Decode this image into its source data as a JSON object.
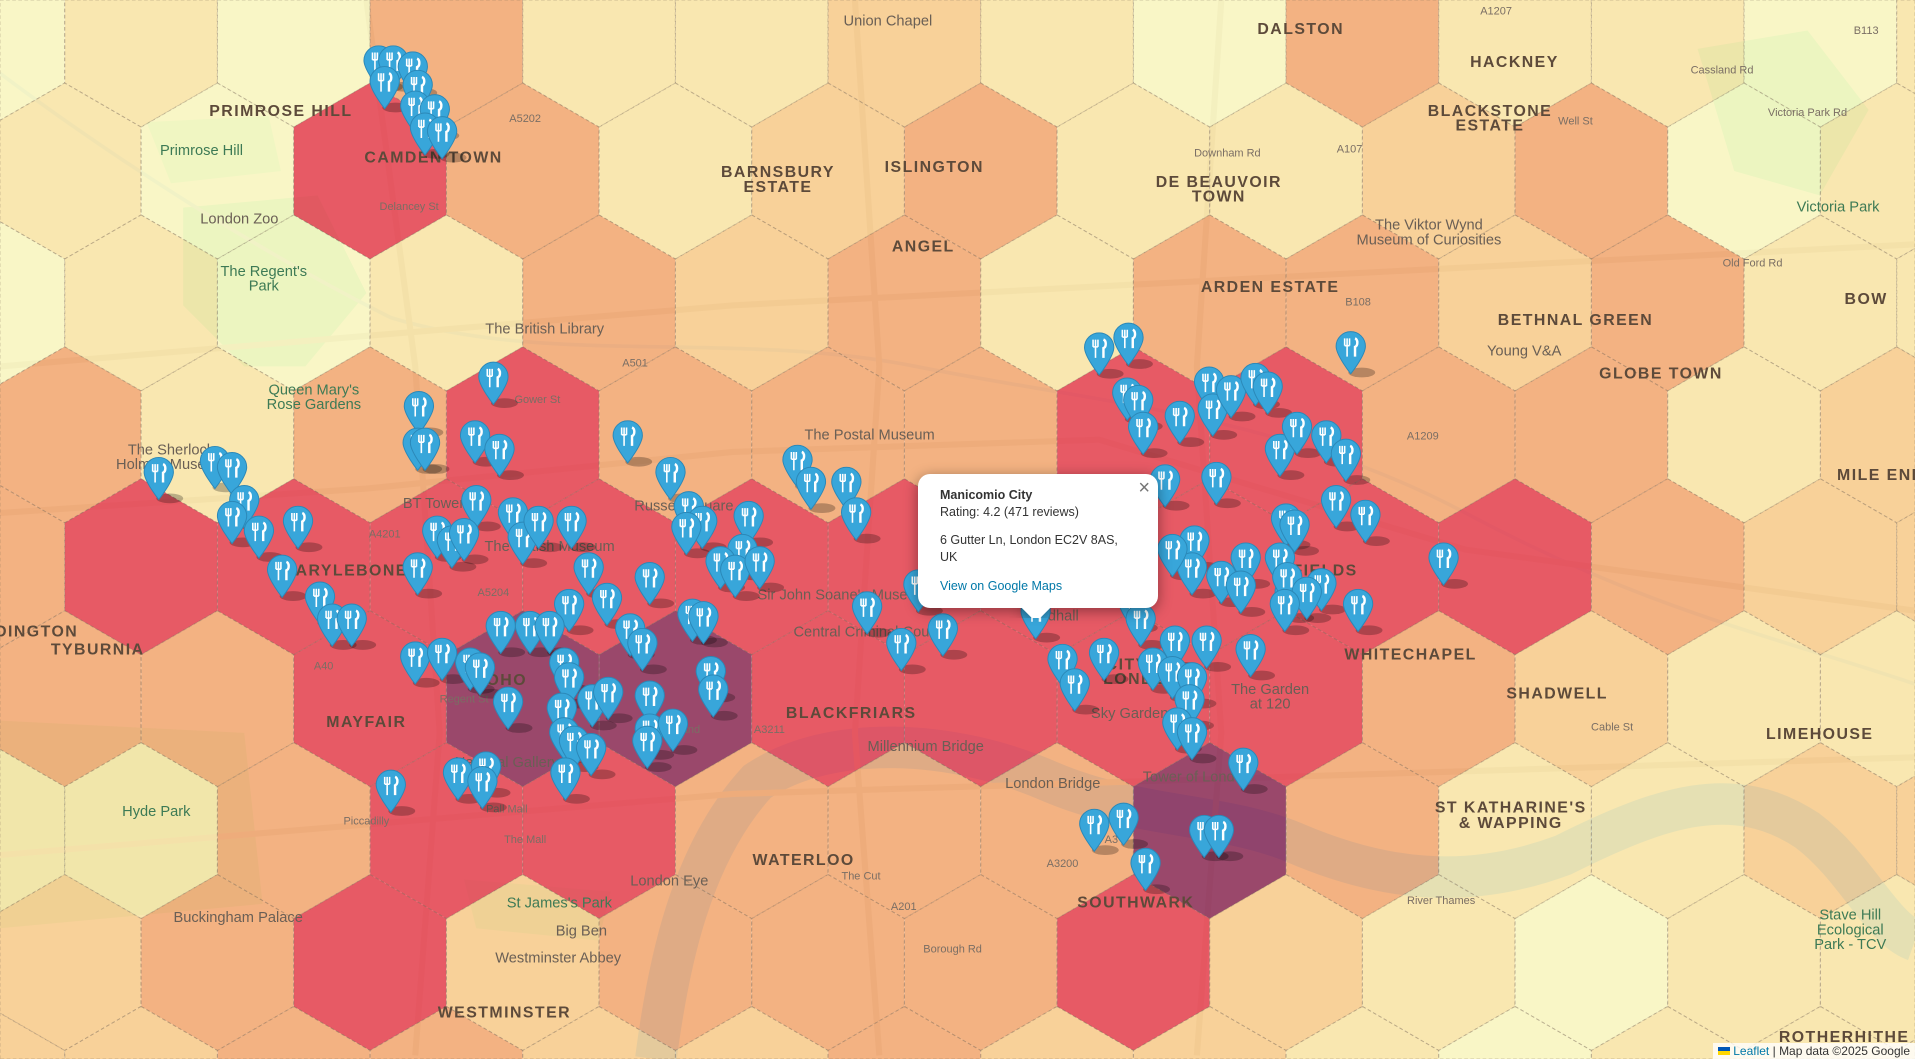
{
  "map": {
    "hex_colors": [
      "#fbf8b8",
      "#fbe39a",
      "#f9c57a",
      "#f39a5a",
      "#e5404e",
      "#8b2a55"
    ],
    "hex_levels": [
      [
        0,
        1,
        0,
        3,
        1,
        1,
        2,
        1,
        0,
        3,
        1,
        1,
        0,
        1
      ],
      [
        0,
        1,
        0,
        4,
        3,
        1,
        2,
        3,
        1,
        1,
        2,
        3,
        0,
        1,
        1
      ],
      [
        0,
        1,
        0,
        1,
        3,
        2,
        3,
        1,
        3,
        3,
        2,
        3,
        1,
        1
      ],
      [
        3,
        3,
        1,
        3,
        4,
        3,
        3,
        3,
        4,
        4,
        3,
        3,
        1,
        2,
        2
      ],
      [
        3,
        4,
        4,
        4,
        4,
        4,
        4,
        4,
        4,
        4,
        4,
        3,
        2,
        2
      ],
      [
        3,
        3,
        3,
        4,
        5,
        5,
        4,
        4,
        4,
        4,
        3,
        2,
        1,
        1,
        1
      ],
      [
        1,
        1,
        3,
        4,
        4,
        3,
        3,
        3,
        5,
        3,
        1,
        1,
        2,
        2
      ],
      [
        2,
        2,
        3,
        4,
        2,
        3,
        3,
        3,
        4,
        2,
        1,
        0,
        1,
        1,
        1
      ],
      [
        2,
        2,
        3,
        3,
        2,
        2,
        3,
        2,
        2,
        1,
        0,
        1,
        1,
        1
      ]
    ],
    "marker_color": "#38a6da",
    "marker_icon": "restaurant-fork-knife-icon",
    "labels": [
      {
        "text": "DALSTON",
        "kind": "area"
      },
      {
        "text": "HACKNEY",
        "kind": "area"
      },
      {
        "text": "CAMDEN TOWN",
        "kind": "area"
      },
      {
        "text": "ISLINGTON",
        "kind": "area"
      },
      {
        "text": "ANGEL",
        "kind": "area"
      },
      {
        "text": "BARNSBURY",
        "kind": "area"
      },
      {
        "text": "ESTATE",
        "kind": "area"
      },
      {
        "text": "ARDEN ESTATE",
        "kind": "area"
      },
      {
        "text": "BETHNAL GREEN",
        "kind": "area"
      },
      {
        "text": "GLOBE TOWN",
        "kind": "area"
      },
      {
        "text": "BOW",
        "kind": "area"
      },
      {
        "text": "MARYLEBONE",
        "kind": "area"
      },
      {
        "text": "TYBURNIA",
        "kind": "area"
      },
      {
        "text": "MAYFAIR",
        "kind": "area"
      },
      {
        "text": "SOHO",
        "kind": "area"
      },
      {
        "text": "BLACKFRIARS",
        "kind": "area"
      },
      {
        "text": "CITY OF",
        "kind": "area"
      },
      {
        "text": "LONDON",
        "kind": "area"
      },
      {
        "text": "WHITECHAPEL",
        "kind": "area"
      },
      {
        "text": "SHADWELL",
        "kind": "area"
      },
      {
        "text": "LIMEHOUSE",
        "kind": "area"
      },
      {
        "text": "WATERLOO",
        "kind": "area"
      },
      {
        "text": "ST KATHARINE'S",
        "kind": "area"
      },
      {
        "text": "& WAPPING",
        "kind": "area"
      },
      {
        "text": "WESTMINSTER",
        "kind": "area"
      },
      {
        "text": "ROTHERHITHE",
        "kind": "area"
      },
      {
        "text": "SOUTHWARK",
        "kind": "area"
      },
      {
        "text": "MILE END",
        "kind": "area"
      },
      {
        "text": "DINGTON",
        "kind": "area"
      },
      {
        "text": "BLACKSTONE",
        "kind": "area"
      },
      {
        "text": "ESTATE",
        "kind": "area"
      },
      {
        "text": "DE BEAUVOIR",
        "kind": "area"
      },
      {
        "text": "TOWN",
        "kind": "area"
      },
      {
        "text": "FIELDS",
        "kind": "area"
      },
      {
        "text": "PRIMROSE HILL",
        "kind": "area"
      },
      {
        "text": "Union Chapel",
        "kind": "poi"
      },
      {
        "text": "Primrose Hill",
        "kind": "park"
      },
      {
        "text": "London Zoo",
        "kind": "poi"
      },
      {
        "text": "The Regent's",
        "kind": "park"
      },
      {
        "text": "Park",
        "kind": "park"
      },
      {
        "text": "The British Library",
        "kind": "poi"
      },
      {
        "text": "Queen Mary's",
        "kind": "park"
      },
      {
        "text": "Rose Gardens",
        "kind": "park"
      },
      {
        "text": "The Sherlock",
        "kind": "poi"
      },
      {
        "text": "Holmes Museum",
        "kind": "poi"
      },
      {
        "text": "BT Tower",
        "kind": "poi"
      },
      {
        "text": "The British Museum",
        "kind": "poi"
      },
      {
        "text": "Russell Square",
        "kind": "poi"
      },
      {
        "text": "The Postal Museum",
        "kind": "poi"
      },
      {
        "text": "Sir John Soane's Museum",
        "kind": "poi"
      },
      {
        "text": "Central Criminal Court",
        "kind": "poi"
      },
      {
        "text": "Guildhall",
        "kind": "poi"
      },
      {
        "text": "Sky Garden",
        "kind": "poi"
      },
      {
        "text": "The Garden",
        "kind": "poi"
      },
      {
        "text": "at 120",
        "kind": "poi"
      },
      {
        "text": "Tower of London",
        "kind": "poi"
      },
      {
        "text": "London Bridge",
        "kind": "poi"
      },
      {
        "text": "Millennium Bridge",
        "kind": "poi"
      },
      {
        "text": "National Gallery",
        "kind": "poi"
      },
      {
        "text": "London Eye",
        "kind": "poi"
      },
      {
        "text": "St James's Park",
        "kind": "park"
      },
      {
        "text": "Big Ben",
        "kind": "poi"
      },
      {
        "text": "Westminster Abbey",
        "kind": "poi"
      },
      {
        "text": "Buckingham Palace",
        "kind": "poi"
      },
      {
        "text": "Hyde Park",
        "kind": "park"
      },
      {
        "text": "The Viktor Wynd",
        "kind": "poi"
      },
      {
        "text": "Museum of Curiosities",
        "kind": "poi"
      },
      {
        "text": "Young V&A",
        "kind": "poi"
      },
      {
        "text": "Victoria Park",
        "kind": "park"
      },
      {
        "text": "Stave Hill",
        "kind": "park"
      },
      {
        "text": "Ecological",
        "kind": "park"
      },
      {
        "text": "Park - TCV",
        "kind": "park"
      },
      {
        "text": "Cassland Rd",
        "kind": "road"
      },
      {
        "text": "Victoria Park Rd",
        "kind": "road"
      },
      {
        "text": "A5202",
        "kind": "road"
      },
      {
        "text": "A501",
        "kind": "road"
      },
      {
        "text": "A4201",
        "kind": "road"
      },
      {
        "text": "A5204",
        "kind": "road"
      },
      {
        "text": "Strand",
        "kind": "road"
      },
      {
        "text": "A40",
        "kind": "road"
      },
      {
        "text": "Pall Mall",
        "kind": "road"
      },
      {
        "text": "Piccadilly",
        "kind": "road"
      },
      {
        "text": "The Mall",
        "kind": "road"
      },
      {
        "text": "A3211",
        "kind": "road"
      },
      {
        "text": "A3200",
        "kind": "road"
      },
      {
        "text": "A201",
        "kind": "road"
      },
      {
        "text": "A3",
        "kind": "road"
      },
      {
        "text": "Borough Rd",
        "kind": "road"
      },
      {
        "text": "The Cut",
        "kind": "road"
      },
      {
        "text": "Cable St",
        "kind": "road"
      },
      {
        "text": "River Thames",
        "kind": "road"
      },
      {
        "text": "B108",
        "kind": "road"
      },
      {
        "text": "A107",
        "kind": "road"
      },
      {
        "text": "A1209",
        "kind": "road"
      },
      {
        "text": "Well St",
        "kind": "road"
      },
      {
        "text": "Old Ford Rd",
        "kind": "road"
      },
      {
        "text": "Regent St",
        "kind": "road"
      },
      {
        "text": "Gower St",
        "kind": "road"
      },
      {
        "text": "B113",
        "kind": "road"
      },
      {
        "text": "A1207",
        "kind": "road"
      },
      {
        "text": "Downham Rd",
        "kind": "road"
      },
      {
        "text": "Delancey St",
        "kind": "road"
      }
    ]
  },
  "popup": {
    "title": "Manicomio City",
    "rating": "Rating: 4.2 (471 reviews)",
    "address": "6 Gutter Ln, London EC2V 8AS, UK",
    "link": "View on Google Maps",
    "close": "×"
  },
  "attribution": {
    "leaflet": "Leaflet",
    "separator": " | ",
    "map_data": "Map data ©2025 Google"
  }
}
